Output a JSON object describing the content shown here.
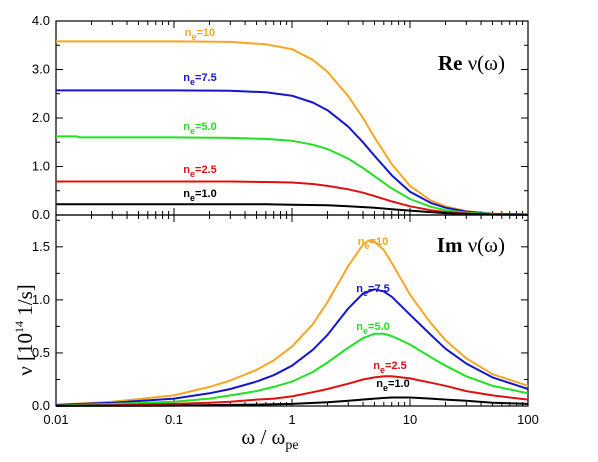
{
  "chart_data": {
    "type": "line",
    "ylabel": {
      "prefix": "ν  [10",
      "sup": "14",
      "suffix": " 1/s]"
    },
    "xlabel": {
      "main": "ω / ω",
      "sub": "pe"
    },
    "x_axis": {
      "scale": "log",
      "range": [
        0.01,
        100
      ],
      "ticks": [
        0.01,
        0.1,
        1,
        10,
        100
      ],
      "tick_labels": [
        "0.01",
        "0.1",
        "1",
        "10",
        "100"
      ]
    },
    "colors": {
      "ne10": "#f5a623",
      "ne7_5": "#1515d0",
      "ne5_0": "#22e022",
      "ne2_5": "#e01010",
      "ne1_0": "#000000"
    },
    "panels": [
      {
        "title": "Re ν(ω)",
        "ylim": [
          0,
          4
        ],
        "y_ticks": [
          0,
          1,
          2,
          3,
          4
        ],
        "y_tick_labels": [
          "0.0",
          "1.0",
          "2.0",
          "3.0",
          "4.0"
        ],
        "series": [
          {
            "key": "ne10",
            "label": {
              "pre": "n",
              "sub": "e",
              "post": "=10"
            },
            "x": [
              0.01,
              0.1,
              0.3,
              0.6,
              1,
              1.5,
              2,
              3,
              4,
              5,
              7,
              10,
              15,
              20,
              30,
              50,
              100
            ],
            "y": [
              3.58,
              3.58,
              3.57,
              3.52,
              3.42,
              3.2,
              2.95,
              2.45,
              2.0,
              1.6,
              1.05,
              0.6,
              0.3,
              0.18,
              0.08,
              0.03,
              0.01
            ]
          },
          {
            "key": "ne7_5",
            "label": {
              "pre": "n",
              "sub": "e",
              "post": "=7.5"
            },
            "x": [
              0.01,
              0.1,
              0.3,
              0.6,
              1,
              1.5,
              2,
              3,
              4,
              5,
              7,
              10,
              15,
              20,
              30,
              50,
              100
            ],
            "y": [
              2.57,
              2.57,
              2.56,
              2.53,
              2.46,
              2.32,
              2.16,
              1.82,
              1.5,
              1.22,
              0.82,
              0.48,
              0.25,
              0.15,
              0.07,
              0.02,
              0.01
            ]
          },
          {
            "key": "ne5_0",
            "label": {
              "pre": "n",
              "sub": "e",
              "post": "=5.0"
            },
            "x": [
              0.01,
              0.015,
              0.016,
              0.1,
              0.3,
              0.6,
              1,
              1.5,
              2,
              3,
              4,
              5,
              7,
              10,
              15,
              20,
              30,
              50,
              100
            ],
            "y": [
              1.62,
              1.62,
              1.6,
              1.6,
              1.59,
              1.57,
              1.53,
              1.45,
              1.36,
              1.16,
              0.97,
              0.8,
              0.55,
              0.33,
              0.17,
              0.1,
              0.05,
              0.02,
              0.01
            ]
          },
          {
            "key": "ne2_5",
            "label": {
              "pre": "n",
              "sub": "e",
              "post": "=2.5"
            },
            "x": [
              0.01,
              0.1,
              0.3,
              0.6,
              1,
              1.5,
              2,
              3,
              4,
              5,
              7,
              10,
              15,
              20,
              30,
              50,
              100
            ],
            "y": [
              0.69,
              0.69,
              0.69,
              0.68,
              0.67,
              0.64,
              0.6,
              0.53,
              0.46,
              0.39,
              0.28,
              0.18,
              0.1,
              0.06,
              0.03,
              0.01,
              0.005
            ]
          },
          {
            "key": "ne1_0",
            "label": {
              "pre": "n",
              "sub": "e",
              "post": "=1.0"
            },
            "x": [
              0.01,
              0.1,
              0.3,
              0.6,
              1,
              2,
              3,
              5,
              7,
              10,
              15,
              20,
              30,
              50,
              100
            ],
            "y": [
              0.22,
              0.22,
              0.22,
              0.22,
              0.21,
              0.2,
              0.18,
              0.15,
              0.12,
              0.09,
              0.06,
              0.04,
              0.02,
              0.01,
              0.005
            ]
          }
        ]
      },
      {
        "title": "Im ν(ω)",
        "ylim": [
          0,
          1.8
        ],
        "y_ticks": [
          0,
          0.5,
          1,
          1.5
        ],
        "y_tick_labels": [
          "0.0",
          "0.5",
          "1.0",
          "1.5"
        ],
        "series": [
          {
            "key": "ne10",
            "label": {
              "pre": "n",
              "sub": "e",
              "post": "=10"
            },
            "x": [
              0.01,
              0.03,
              0.1,
              0.2,
              0.3,
              0.5,
              0.7,
              1,
              1.5,
              2,
              3,
              4,
              4.5,
              5,
              6,
              7,
              10,
              15,
              20,
              30,
              50,
              100
            ],
            "y": [
              0.01,
              0.04,
              0.1,
              0.18,
              0.24,
              0.34,
              0.43,
              0.56,
              0.77,
              0.98,
              1.32,
              1.52,
              1.56,
              1.55,
              1.47,
              1.35,
              1.05,
              0.78,
              0.62,
              0.45,
              0.3,
              0.19
            ]
          },
          {
            "key": "ne7_5",
            "label": {
              "pre": "n",
              "sub": "e",
              "post": "=7.5"
            },
            "x": [
              0.01,
              0.03,
              0.1,
              0.2,
              0.3,
              0.5,
              0.7,
              1,
              1.5,
              2,
              3,
              4,
              5,
              6,
              7,
              10,
              15,
              20,
              30,
              50,
              100
            ],
            "y": [
              0.01,
              0.03,
              0.07,
              0.12,
              0.16,
              0.23,
              0.29,
              0.38,
              0.53,
              0.67,
              0.92,
              1.06,
              1.1,
              1.08,
              1.03,
              0.86,
              0.67,
              0.54,
              0.4,
              0.27,
              0.16
            ]
          },
          {
            "key": "ne5_0",
            "label": {
              "pre": "n",
              "sub": "e",
              "post": "=5.0"
            },
            "x": [
              0.01,
              0.03,
              0.1,
              0.2,
              0.3,
              0.5,
              0.7,
              1,
              1.5,
              2,
              3,
              4,
              5,
              6,
              7,
              10,
              15,
              20,
              30,
              50,
              100
            ],
            "y": [
              0.005,
              0.02,
              0.04,
              0.07,
              0.1,
              0.14,
              0.18,
              0.23,
              0.32,
              0.41,
              0.55,
              0.64,
              0.68,
              0.68,
              0.66,
              0.58,
              0.46,
              0.38,
              0.28,
              0.19,
              0.12
            ]
          },
          {
            "key": "ne2_5",
            "label": {
              "pre": "n",
              "sub": "e",
              "post": "=2.5"
            },
            "x": [
              0.01,
              0.03,
              0.1,
              0.2,
              0.3,
              0.5,
              0.7,
              1,
              1.5,
              2,
              3,
              4,
              5,
              6,
              7,
              10,
              15,
              20,
              30,
              50,
              100
            ],
            "y": [
              0.003,
              0.008,
              0.02,
              0.03,
              0.04,
              0.06,
              0.07,
              0.09,
              0.13,
              0.16,
              0.21,
              0.25,
              0.27,
              0.28,
              0.28,
              0.26,
              0.22,
              0.19,
              0.14,
              0.1,
              0.06
            ]
          },
          {
            "key": "ne1_0",
            "label": {
              "pre": "n",
              "sub": "e",
              "post": "=1.0"
            },
            "x": [
              0.01,
              0.03,
              0.1,
              0.3,
              0.5,
              1,
              2,
              3,
              5,
              7,
              10,
              15,
              20,
              30,
              50,
              100
            ],
            "y": [
              0.001,
              0.002,
              0.004,
              0.01,
              0.013,
              0.02,
              0.035,
              0.05,
              0.07,
              0.08,
              0.08,
              0.07,
              0.06,
              0.05,
              0.03,
              0.02
            ]
          }
        ]
      }
    ]
  }
}
